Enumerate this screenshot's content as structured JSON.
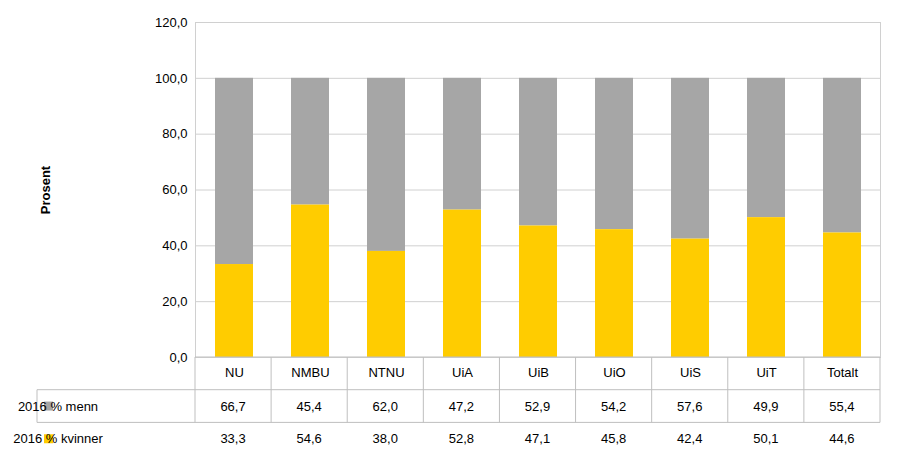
{
  "chart_data": {
    "type": "bar",
    "stacked": true,
    "y_label": "Prosent",
    "categories": [
      "NU",
      "NMBU",
      "NTNU",
      "UiA",
      "UiB",
      "UiO",
      "UiS",
      "UiT",
      "Totalt"
    ],
    "series": [
      {
        "name": "2016 % menn",
        "color": "#a6a6a6",
        "values": [
          66.7,
          45.4,
          62.0,
          47.2,
          52.9,
          54.2,
          57.6,
          49.9,
          55.4
        ],
        "value_labels": [
          "66,7",
          "45,4",
          "62,0",
          "47,2",
          "52,9",
          "54,2",
          "57,6",
          "49,9",
          "55,4"
        ]
      },
      {
        "name": "2016 % kvinner",
        "color": "#ffcc00",
        "values": [
          33.3,
          54.6,
          38.0,
          52.8,
          47.1,
          45.8,
          42.4,
          50.1,
          44.6
        ],
        "value_labels": [
          "33,3",
          "54,6",
          "38,0",
          "52,8",
          "47,1",
          "45,8",
          "42,4",
          "50,1",
          "44,6"
        ]
      }
    ],
    "ylim": [
      0,
      120
    ],
    "yticks": [
      {
        "value": 0,
        "label": "0,0"
      },
      {
        "value": 20,
        "label": "20,0"
      },
      {
        "value": 40,
        "label": "40,0"
      },
      {
        "value": 60,
        "label": "60,0"
      },
      {
        "value": 80,
        "label": "80,0"
      },
      {
        "value": 100,
        "label": "100,0"
      },
      {
        "value": 120,
        "label": "120,0"
      }
    ],
    "grid": true
  }
}
